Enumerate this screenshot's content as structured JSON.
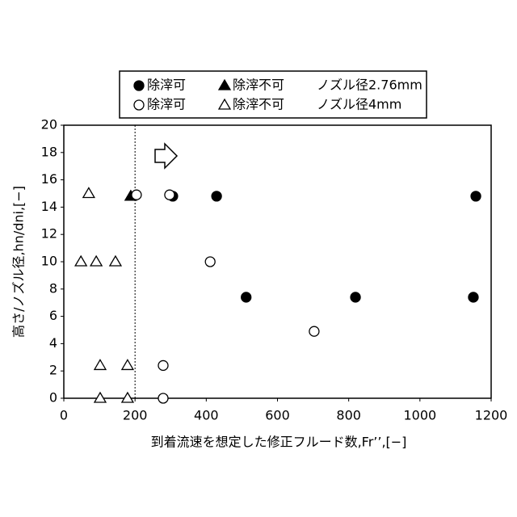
{
  "chart_data": {
    "type": "scatter",
    "xlabel": "到着流速を想定した修正フルード数,Fr’’,[−]",
    "ylabel": "高さ/ノズル径,hn/dni,[−]",
    "xlim": [
      0,
      1200
    ],
    "xticks": [
      0,
      200,
      400,
      600,
      800,
      1000,
      1200
    ],
    "ylim": [
      0,
      20
    ],
    "yticks": [
      0,
      2,
      4,
      6,
      8,
      10,
      12,
      14,
      16,
      18,
      20
    ],
    "grid": false,
    "reference_line_x": 200,
    "legend_rows": [
      "ノズル径2.76mm",
      "ノズル径4mm"
    ],
    "series": [
      {
        "name": "除滓可",
        "marker": "circle",
        "filled": true,
        "color": "#000000",
        "x": [
          306,
          429,
          512,
          819,
          1157,
          1150
        ],
        "values": [
          14.8,
          14.8,
          7.4,
          7.4,
          14.8,
          7.4
        ]
      },
      {
        "name": "除滓不可",
        "marker": "triangle",
        "filled": true,
        "color": "#000000",
        "x": [
          188
        ],
        "values": [
          14.8
        ]
      },
      {
        "name": "除滓可",
        "marker": "circle",
        "filled": false,
        "color": "#000000",
        "x": [
          204,
          297,
          411,
          703,
          279,
          279
        ],
        "values": [
          14.9,
          14.9,
          10,
          4.9,
          2.4,
          0
        ]
      },
      {
        "name": "除滓不可",
        "marker": "triangle",
        "filled": false,
        "color": "#000000",
        "x": [
          70,
          48,
          91,
          145,
          102,
          179,
          102,
          179
        ],
        "values": [
          15,
          10,
          10,
          10,
          2.4,
          2.4,
          0,
          0
        ]
      }
    ]
  }
}
